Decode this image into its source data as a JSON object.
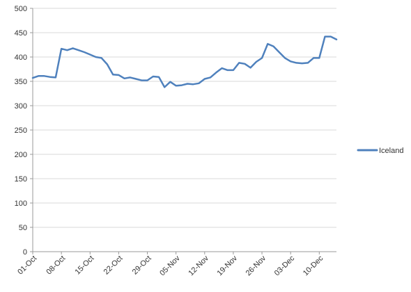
{
  "chart_data": {
    "type": "line",
    "title": "",
    "xlabel": "",
    "ylabel": "",
    "ylim": [
      0,
      500
    ],
    "yticks": [
      0,
      50,
      100,
      150,
      200,
      250,
      300,
      350,
      400,
      450,
      500
    ],
    "xticks": [
      "01-Oct",
      "08-Oct",
      "15-Oct",
      "22-Oct",
      "29-Oct",
      "05-Nov",
      "12-Nov",
      "19-Nov",
      "26-Nov",
      "03-Dec",
      "10-Dec"
    ],
    "grid": "horizontal",
    "legend": "right",
    "series": [
      {
        "name": "Iceland",
        "color": "#4f81bd",
        "x": [
          "01-Oct",
          "02-Oct",
          "03-Oct",
          "06-Oct",
          "07-Oct",
          "08-Oct",
          "09-Oct",
          "10-Oct",
          "13-Oct",
          "14-Oct",
          "15-Oct",
          "16-Oct",
          "17-Oct",
          "20-Oct",
          "21-Oct",
          "22-Oct",
          "23-Oct",
          "24-Oct",
          "27-Oct",
          "28-Oct",
          "29-Oct",
          "30-Oct",
          "31-Oct",
          "03-Nov",
          "04-Nov",
          "05-Nov",
          "06-Nov",
          "07-Nov",
          "10-Nov",
          "11-Nov",
          "12-Nov",
          "13-Nov",
          "14-Nov",
          "17-Nov",
          "18-Nov",
          "19-Nov",
          "20-Nov",
          "21-Nov",
          "24-Nov",
          "25-Nov",
          "26-Nov",
          "27-Nov",
          "28-Nov",
          "01-Dec",
          "02-Dec",
          "03-Dec",
          "04-Dec",
          "05-Dec",
          "08-Dec",
          "09-Dec",
          "10-Dec",
          "11-Dec",
          "12-Dec",
          "15-Dec"
        ],
        "values": [
          357,
          361,
          361,
          359,
          358,
          417,
          414,
          418,
          414,
          410,
          405,
          400,
          398,
          385,
          364,
          363,
          356,
          358,
          355,
          352,
          352,
          360,
          359,
          338,
          349,
          341,
          342,
          345,
          344,
          346,
          355,
          358,
          368,
          377,
          373,
          373,
          388,
          386,
          378,
          390,
          398,
          427,
          422,
          410,
          398,
          391,
          388,
          387,
          388,
          398,
          398,
          442,
          442,
          436
        ]
      }
    ]
  }
}
